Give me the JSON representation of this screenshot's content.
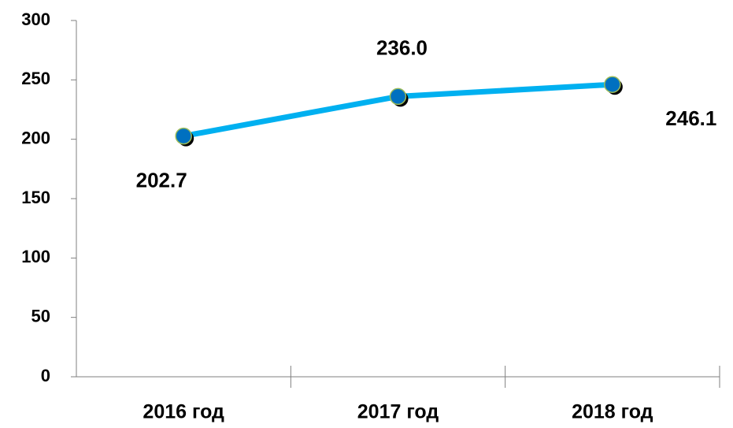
{
  "chart_data": {
    "type": "line",
    "categories": [
      "2016 год",
      "2017 год",
      "2018 год"
    ],
    "series": [
      {
        "name": null,
        "color": "#00b0f0",
        "marker_color": "#0070c0",
        "values": [
          202.7,
          236.0,
          246.1
        ],
        "value_labels": [
          "202.7",
          "236.0",
          "246.1"
        ]
      }
    ],
    "ylim": [
      0,
      300
    ],
    "yticks": [
      0,
      50,
      100,
      150,
      200,
      250,
      300
    ],
    "grid": false
  }
}
